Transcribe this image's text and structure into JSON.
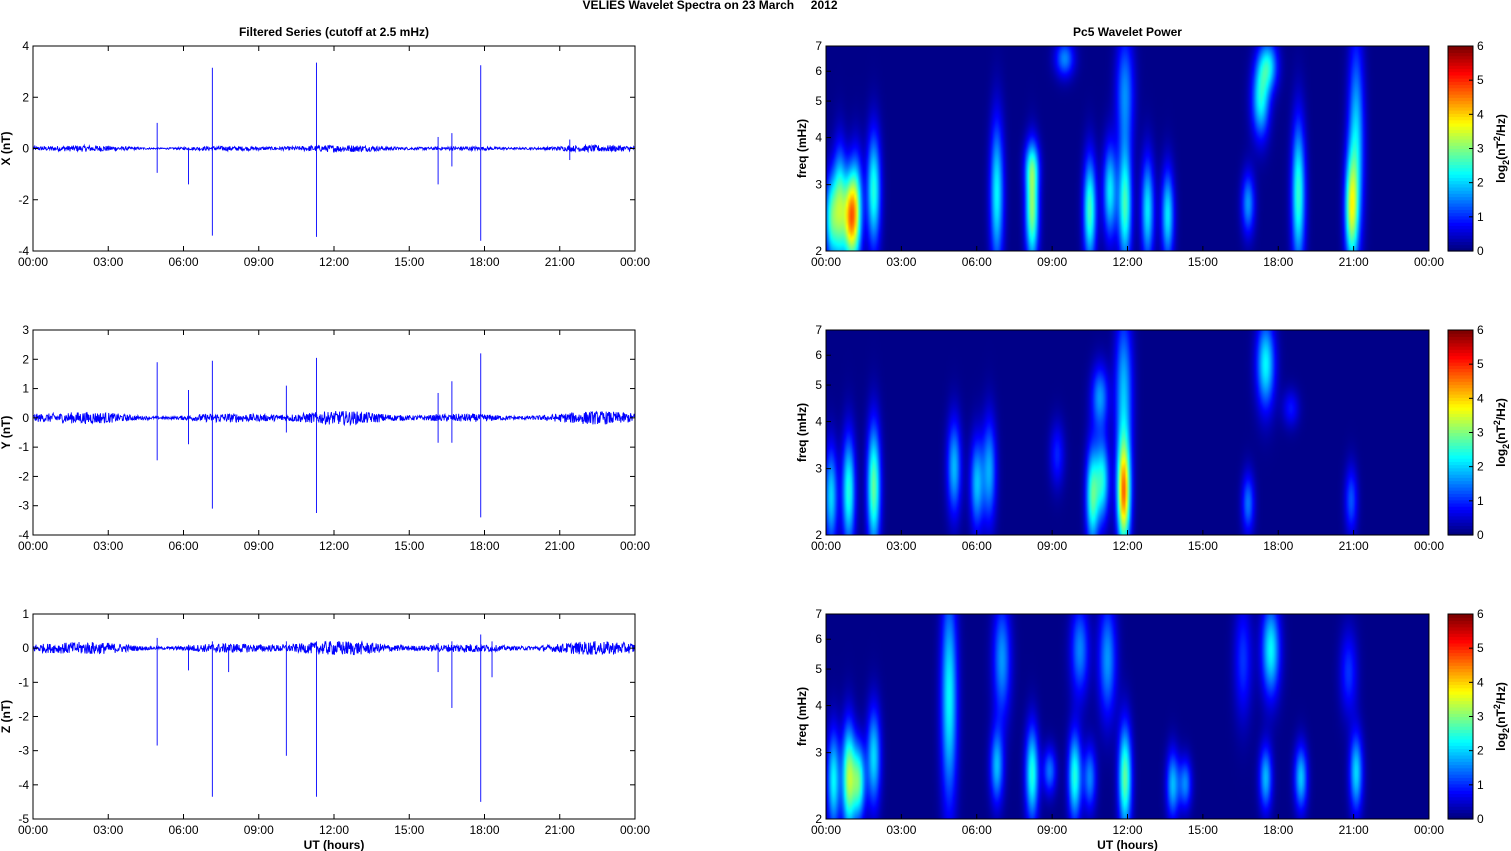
{
  "figure": {
    "suptitle": "VELIES Wavelet Spectra on 23 March     2012",
    "left_title": "Filtered Series (cutoff at 2.5 mHz)",
    "right_title": "Pc5 Wavelet Power",
    "bottom_xlabel": "UT (hours)"
  },
  "colors": {
    "trace": "#0000ff",
    "spectrum_background": "#00008f",
    "colormap": "jet"
  },
  "chart_data": [
    {
      "type": "line",
      "title": "Filtered Series (cutoff at 2.5 mHz)",
      "ylabel": "X (nT)",
      "xlabel": "",
      "xticks": [
        "00:00",
        "03:00",
        "06:00",
        "09:00",
        "12:00",
        "15:00",
        "18:00",
        "21:00",
        "00:00"
      ],
      "xlim_hours": [
        0,
        24
      ],
      "ylim": [
        -4,
        4
      ],
      "yticks": [
        -4,
        -2,
        0,
        2,
        4
      ],
      "baseline_noise_nT": 0.12,
      "spikes": [
        {
          "t": 4.95,
          "up": 1.0,
          "down": -0.95
        },
        {
          "t": 6.2,
          "up": 0.0,
          "down": -1.4
        },
        {
          "t": 7.15,
          "up": 3.15,
          "down": -3.4
        },
        {
          "t": 11.3,
          "up": 3.35,
          "down": -3.45
        },
        {
          "t": 16.15,
          "up": 0.45,
          "down": -1.4
        },
        {
          "t": 16.7,
          "up": 0.6,
          "down": -0.7
        },
        {
          "t": 17.85,
          "up": 3.25,
          "down": -3.6
        },
        {
          "t": 21.4,
          "up": 0.35,
          "down": -0.45
        }
      ]
    },
    {
      "type": "line",
      "ylabel": "Y (nT)",
      "xlabel": "",
      "xticks": [
        "00:00",
        "03:00",
        "06:00",
        "09:00",
        "12:00",
        "15:00",
        "18:00",
        "21:00",
        "00:00"
      ],
      "xlim_hours": [
        0,
        24
      ],
      "ylim": [
        -4,
        3
      ],
      "yticks": [
        -4,
        -3,
        -2,
        -1,
        0,
        1,
        2,
        3
      ],
      "baseline_noise_nT": 0.2,
      "spikes": [
        {
          "t": 4.95,
          "up": 1.9,
          "down": -1.45
        },
        {
          "t": 6.2,
          "up": 0.95,
          "down": -0.9
        },
        {
          "t": 7.15,
          "up": 1.95,
          "down": -3.1
        },
        {
          "t": 10.1,
          "up": 1.1,
          "down": -0.5
        },
        {
          "t": 11.3,
          "up": 2.05,
          "down": -3.25
        },
        {
          "t": 16.15,
          "up": 0.85,
          "down": -0.85
        },
        {
          "t": 16.7,
          "up": 1.25,
          "down": -0.85
        },
        {
          "t": 17.85,
          "up": 2.2,
          "down": -3.4
        }
      ]
    },
    {
      "type": "line",
      "ylabel": "Z (nT)",
      "xlabel": "UT (hours)",
      "xticks": [
        "00:00",
        "03:00",
        "06:00",
        "09:00",
        "12:00",
        "15:00",
        "18:00",
        "21:00",
        "00:00"
      ],
      "xlim_hours": [
        0,
        24
      ],
      "ylim": [
        -5,
        1
      ],
      "yticks": [
        -5,
        -4,
        -3,
        -2,
        -1,
        0,
        1
      ],
      "baseline_noise_nT": 0.18,
      "spikes": [
        {
          "t": 4.95,
          "up": 0.3,
          "down": -2.85
        },
        {
          "t": 6.2,
          "up": 0.1,
          "down": -0.65
        },
        {
          "t": 7.15,
          "up": 0.2,
          "down": -4.35
        },
        {
          "t": 7.8,
          "up": 0.1,
          "down": -0.7
        },
        {
          "t": 10.1,
          "up": 0.2,
          "down": -3.15
        },
        {
          "t": 11.3,
          "up": 0.2,
          "down": -4.35
        },
        {
          "t": 16.15,
          "up": 0.15,
          "down": -0.7
        },
        {
          "t": 16.7,
          "up": 0.2,
          "down": -1.75
        },
        {
          "t": 17.85,
          "up": 0.4,
          "down": -4.5
        },
        {
          "t": 18.3,
          "up": 0.2,
          "down": -0.85
        }
      ]
    },
    {
      "type": "heatmap",
      "title": "Pc5 Wavelet Power",
      "ylabel": "freq (mHz)",
      "xlabel": "",
      "xticks": [
        "00:00",
        "03:00",
        "06:00",
        "09:00",
        "12:00",
        "15:00",
        "18:00",
        "21:00",
        "00:00"
      ],
      "xlim_hours": [
        0,
        24
      ],
      "ylim_mHz": [
        2,
        7
      ],
      "yscale": "log",
      "yticks": [
        2,
        3,
        4,
        5,
        6,
        7
      ],
      "colorbar": {
        "label": "log2(nT^2/Hz)",
        "ticks": [
          0,
          1,
          2,
          3,
          4,
          5,
          6
        ],
        "range": [
          0,
          6
        ]
      },
      "blobs": [
        {
          "t": 0.2,
          "f_low": 2.0,
          "f_high": 3.0,
          "peak": 2.3
        },
        {
          "t": 0.55,
          "f_low": 2.0,
          "f_high": 3.4,
          "peak": 2.8
        },
        {
          "t": 0.95,
          "f_low": 2.0,
          "f_high": 3.0,
          "peak": 3.3
        },
        {
          "t": 1.2,
          "f_low": 2.0,
          "f_high": 3.3,
          "peak": 2.6
        },
        {
          "t": 1.9,
          "f_low": 2.2,
          "f_high": 3.8,
          "peak": 2.4
        },
        {
          "t": 6.8,
          "f_low": 2.0,
          "f_high": 4.0,
          "peak": 2.2
        },
        {
          "t": 8.2,
          "f_low": 2.0,
          "f_high": 3.3,
          "peak": 3.0
        },
        {
          "t": 8.2,
          "f_low": 3.0,
          "f_high": 3.8,
          "peak": 1.4
        },
        {
          "t": 9.5,
          "f_low": 6.0,
          "f_high": 7.0,
          "peak": 1.5
        },
        {
          "t": 10.5,
          "f_low": 2.0,
          "f_high": 3.3,
          "peak": 2.6
        },
        {
          "t": 11.3,
          "f_low": 2.3,
          "f_high": 3.6,
          "peak": 2.1
        },
        {
          "t": 11.9,
          "f_low": 2.0,
          "f_high": 3.5,
          "peak": 2.6
        },
        {
          "t": 11.9,
          "f_low": 4.0,
          "f_high": 7.0,
          "peak": 1.5
        },
        {
          "t": 12.8,
          "f_low": 2.0,
          "f_high": 3.3,
          "peak": 2.1
        },
        {
          "t": 13.6,
          "f_low": 2.0,
          "f_high": 3.1,
          "peak": 2.1
        },
        {
          "t": 16.8,
          "f_low": 2.3,
          "f_high": 3.1,
          "peak": 1.6
        },
        {
          "t": 17.3,
          "f_low": 4.2,
          "f_high": 6.0,
          "peak": 2.2
        },
        {
          "t": 17.6,
          "f_low": 5.5,
          "f_high": 7.0,
          "peak": 2.0
        },
        {
          "t": 18.8,
          "f_low": 2.0,
          "f_high": 4.0,
          "peak": 2.5
        },
        {
          "t": 20.9,
          "f_low": 2.0,
          "f_high": 3.3,
          "peak": 2.8
        },
        {
          "t": 21.1,
          "f_low": 2.4,
          "f_high": 6.2,
          "peak": 2.0
        }
      ]
    },
    {
      "type": "heatmap",
      "ylabel": "freq (mHz)",
      "xlabel": "",
      "xticks": [
        "00:00",
        "03:00",
        "06:00",
        "09:00",
        "12:00",
        "15:00",
        "18:00",
        "21:00",
        "00:00"
      ],
      "xlim_hours": [
        0,
        24
      ],
      "ylim_mHz": [
        2,
        7
      ],
      "yscale": "log",
      "yticks": [
        2,
        3,
        4,
        5,
        6,
        7
      ],
      "colorbar": {
        "label": "log2(nT^2/Hz)",
        "ticks": [
          0,
          1,
          2,
          3,
          4,
          5,
          6
        ],
        "range": [
          0,
          6
        ]
      },
      "blobs": [
        {
          "t": 0.2,
          "f_low": 2.0,
          "f_high": 3.2,
          "peak": 2.0
        },
        {
          "t": 0.9,
          "f_low": 2.0,
          "f_high": 3.4,
          "peak": 2.4
        },
        {
          "t": 1.9,
          "f_low": 2.0,
          "f_high": 3.6,
          "peak": 2.8
        },
        {
          "t": 5.1,
          "f_low": 2.4,
          "f_high": 3.8,
          "peak": 1.8
        },
        {
          "t": 6.0,
          "f_low": 2.2,
          "f_high": 3.4,
          "peak": 1.8
        },
        {
          "t": 6.5,
          "f_low": 2.3,
          "f_high": 3.8,
          "peak": 1.7
        },
        {
          "t": 9.2,
          "f_low": 2.8,
          "f_high": 3.8,
          "peak": 0.9
        },
        {
          "t": 10.6,
          "f_low": 2.0,
          "f_high": 3.2,
          "peak": 2.6
        },
        {
          "t": 11.0,
          "f_low": 2.3,
          "f_high": 3.4,
          "peak": 2.2
        },
        {
          "t": 10.9,
          "f_low": 4.0,
          "f_high": 5.4,
          "peak": 1.6
        },
        {
          "t": 11.85,
          "f_low": 2.0,
          "f_high": 3.3,
          "peak": 4.3
        },
        {
          "t": 11.85,
          "f_low": 3.3,
          "f_high": 7.0,
          "peak": 1.8
        },
        {
          "t": 16.8,
          "f_low": 2.1,
          "f_high": 2.8,
          "peak": 1.4
        },
        {
          "t": 17.5,
          "f_low": 4.6,
          "f_high": 7.0,
          "peak": 2.2
        },
        {
          "t": 18.5,
          "f_low": 4.0,
          "f_high": 4.7,
          "peak": 0.8
        },
        {
          "t": 20.9,
          "f_low": 2.1,
          "f_high": 2.9,
          "peak": 1.2
        }
      ]
    },
    {
      "type": "heatmap",
      "ylabel": "freq (mHz)",
      "xlabel": "UT (hours)",
      "xticks": [
        "00:00",
        "03:00",
        "06:00",
        "09:00",
        "12:00",
        "15:00",
        "18:00",
        "21:00",
        "00:00"
      ],
      "xlim_hours": [
        0,
        24
      ],
      "ylim_mHz": [
        2,
        7
      ],
      "yscale": "log",
      "yticks": [
        2,
        3,
        4,
        5,
        6,
        7
      ],
      "colorbar": {
        "label": "log2(nT^2/Hz)",
        "ticks": [
          0,
          1,
          2,
          3,
          4,
          5,
          6
        ],
        "range": [
          0,
          6
        ]
      },
      "blobs": [
        {
          "t": 0.3,
          "f_low": 2.0,
          "f_high": 3.2,
          "peak": 2.2
        },
        {
          "t": 0.9,
          "f_low": 2.0,
          "f_high": 3.3,
          "peak": 3.1
        },
        {
          "t": 1.3,
          "f_low": 2.1,
          "f_high": 3.0,
          "peak": 2.6
        },
        {
          "t": 1.9,
          "f_low": 2.3,
          "f_high": 3.7,
          "peak": 2.0
        },
        {
          "t": 4.9,
          "f_low": 2.5,
          "f_high": 7.0,
          "peak": 2.2
        },
        {
          "t": 6.8,
          "f_low": 2.3,
          "f_high": 3.3,
          "peak": 1.8
        },
        {
          "t": 7.0,
          "f_low": 4.0,
          "f_high": 7.0,
          "peak": 1.6
        },
        {
          "t": 8.2,
          "f_low": 2.1,
          "f_high": 3.3,
          "peak": 2.4
        },
        {
          "t": 8.9,
          "f_low": 2.4,
          "f_high": 3.0,
          "peak": 1.4
        },
        {
          "t": 9.9,
          "f_low": 2.1,
          "f_high": 3.2,
          "peak": 2.4
        },
        {
          "t": 10.1,
          "f_low": 4.5,
          "f_high": 7.0,
          "peak": 1.5
        },
        {
          "t": 11.2,
          "f_low": 4.0,
          "f_high": 7.0,
          "peak": 1.6
        },
        {
          "t": 10.5,
          "f_low": 2.2,
          "f_high": 3.0,
          "peak": 1.5
        },
        {
          "t": 11.9,
          "f_low": 2.0,
          "f_high": 3.3,
          "peak": 2.8
        },
        {
          "t": 13.8,
          "f_low": 2.1,
          "f_high": 2.9,
          "peak": 1.8
        },
        {
          "t": 14.3,
          "f_low": 2.2,
          "f_high": 2.8,
          "peak": 1.5
        },
        {
          "t": 16.6,
          "f_low": 4.0,
          "f_high": 7.0,
          "peak": 1.0
        },
        {
          "t": 17.5,
          "f_low": 2.2,
          "f_high": 3.0,
          "peak": 1.8
        },
        {
          "t": 17.7,
          "f_low": 4.5,
          "f_high": 7.0,
          "peak": 2.2
        },
        {
          "t": 18.9,
          "f_low": 2.2,
          "f_high": 3.0,
          "peak": 1.9
        },
        {
          "t": 21.1,
          "f_low": 2.2,
          "f_high": 3.2,
          "peak": 2.0
        },
        {
          "t": 20.8,
          "f_low": 4.0,
          "f_high": 6.0,
          "peak": 1.0
        }
      ]
    }
  ]
}
